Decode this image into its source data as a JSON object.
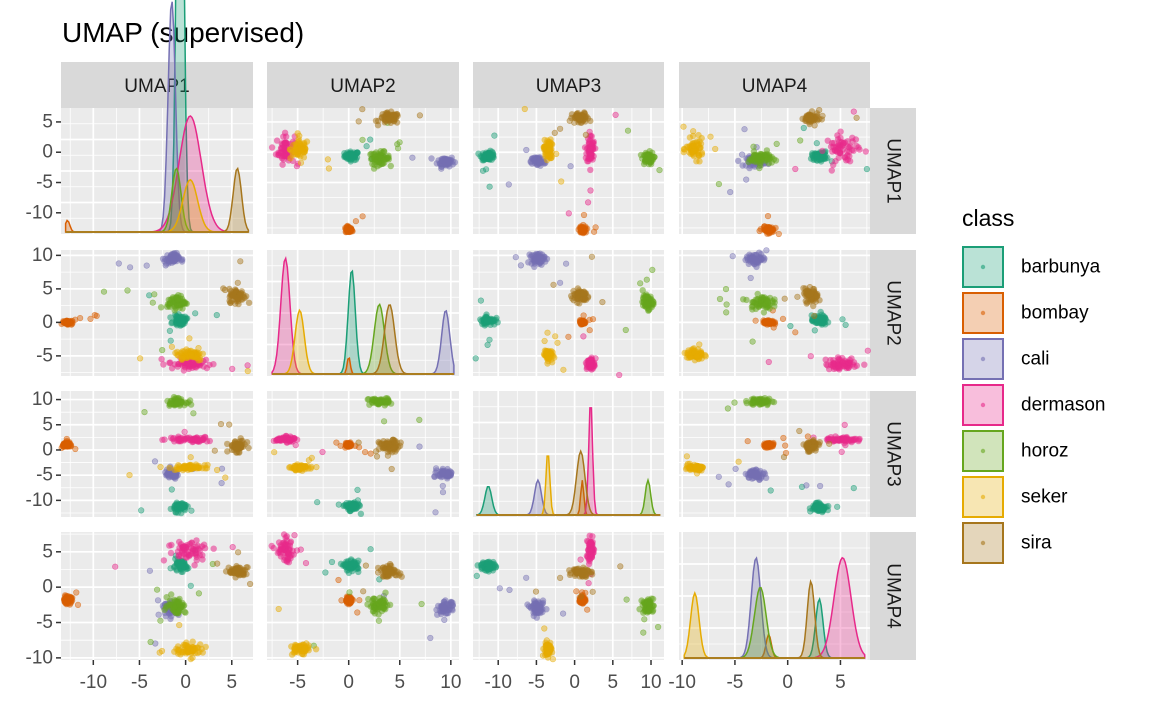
{
  "chart_data": {
    "type": "scatter",
    "subtype": "pairs-matrix (scatter off-diagonal, density on diagonal)",
    "title": "UMAP (supervised)",
    "variables": [
      "UMAP1",
      "UMAP2",
      "UMAP3",
      "UMAP4"
    ],
    "axes": {
      "UMAP1": {
        "range": [
          -13.5,
          7.3
        ],
        "ticks": [
          -10,
          -5,
          0,
          5
        ],
        "tick_labels": [
          "-10",
          "-5",
          "0",
          "5"
        ]
      },
      "UMAP2": {
        "range": [
          -8,
          10.8
        ],
        "ticks": [
          -5,
          0,
          5,
          10
        ],
        "tick_labels": [
          "-5",
          "0",
          "5",
          "10"
        ]
      },
      "UMAP3": {
        "range": [
          -13.3,
          11.7
        ],
        "ticks": [
          -10,
          -5,
          0,
          5,
          10
        ],
        "tick_labels": [
          "-10",
          "-5",
          "0",
          "5",
          "10"
        ]
      },
      "UMAP4": {
        "range": [
          -10.3,
          7.8
        ],
        "ticks": [
          -10,
          -5,
          0,
          5
        ],
        "tick_labels": [
          "-10",
          "-5",
          "0",
          "5"
        ]
      }
    },
    "bottom_tick_labels": [
      [
        "-10",
        "-5",
        "0",
        "5"
      ],
      [
        "-5",
        "0",
        "5",
        "10"
      ],
      [
        "-10",
        "-5",
        "0",
        "5",
        "10-10"
      ],
      [
        "-5",
        "0",
        "5"
      ]
    ],
    "grid": true,
    "legend": {
      "title": "class",
      "position": "right",
      "entries": [
        "barbunya",
        "bombay",
        "cali",
        "dermason",
        "horoz",
        "seker",
        "sira"
      ]
    },
    "classes": [
      {
        "name": "barbunya",
        "color": "#1B9E77",
        "centroid": {
          "UMAP1": -0.6,
          "UMAP2": 0.3,
          "UMAP3": -11.3,
          "UMAP4": 3.0
        },
        "spread": {
          "UMAP1": 0.35,
          "UMAP2": 0.35,
          "UMAP3": 0.45,
          "UMAP4": 0.35
        },
        "density_peaks": {
          "UMAP1": 5.2,
          "UMAP2": 0.9,
          "UMAP3": 0.25,
          "UMAP4": 0.5
        }
      },
      {
        "name": "bombay",
        "color": "#D95F02",
        "centroid": {
          "UMAP1": -12.8,
          "UMAP2": 0.0,
          "UMAP3": 1.0,
          "UMAP4": -1.8
        },
        "spread": {
          "UMAP1": 0.25,
          "UMAP2": 0.15,
          "UMAP3": 0.2,
          "UMAP4": 0.25
        },
        "density_peaks": {
          "UMAP1": 0.1,
          "UMAP2": 0.15,
          "UMAP3": 0.3,
          "UMAP4": 0.2
        }
      },
      {
        "name": "cali",
        "color": "#7570B3",
        "centroid": {
          "UMAP1": -1.5,
          "UMAP2": 9.5,
          "UMAP3": -4.8,
          "UMAP4": -3.0
        },
        "spread": {
          "UMAP1": 0.4,
          "UMAP2": 0.4,
          "UMAP3": 0.45,
          "UMAP4": 0.45
        },
        "density_peaks": {
          "UMAP1": 2.0,
          "UMAP2": 0.55,
          "UMAP3": 0.3,
          "UMAP4": 0.85
        }
      },
      {
        "name": "dermason",
        "color": "#E7298A",
        "centroid": {
          "UMAP1": 0.5,
          "UMAP2": -6.2,
          "UMAP3": 2.1,
          "UMAP4": 5.2
        },
        "spread": {
          "UMAP1": 1.2,
          "UMAP2": 0.45,
          "UMAP3": 0.25,
          "UMAP4": 0.8
        },
        "density_peaks": {
          "UMAP1": 1.0,
          "UMAP2": 1.0,
          "UMAP3": 1.0,
          "UMAP4": 0.85
        }
      },
      {
        "name": "horoz",
        "color": "#66A61E",
        "centroid": {
          "UMAP1": -1.0,
          "UMAP2": 3.0,
          "UMAP3": 9.6,
          "UMAP4": -2.6
        },
        "spread": {
          "UMAP1": 0.5,
          "UMAP2": 0.5,
          "UMAP3": 0.35,
          "UMAP4": 0.55
        },
        "density_peaks": {
          "UMAP1": 0.55,
          "UMAP2": 0.6,
          "UMAP3": 0.3,
          "UMAP4": 0.6
        }
      },
      {
        "name": "seker",
        "color": "#E6AB02",
        "centroid": {
          "UMAP1": 0.5,
          "UMAP2": -4.8,
          "UMAP3": -3.5,
          "UMAP4": -8.8
        },
        "spread": {
          "UMAP1": 0.8,
          "UMAP2": 0.45,
          "UMAP3": 0.25,
          "UMAP4": 0.4
        },
        "density_peaks": {
          "UMAP1": 0.45,
          "UMAP2": 0.55,
          "UMAP3": 0.55,
          "UMAP4": 0.55
        }
      },
      {
        "name": "sira",
        "color": "#A6761D",
        "centroid": {
          "UMAP1": 5.6,
          "UMAP2": 4.0,
          "UMAP3": 0.8,
          "UMAP4": 2.2
        },
        "spread": {
          "UMAP1": 0.45,
          "UMAP2": 0.5,
          "UMAP3": 0.55,
          "UMAP4": 0.35
        },
        "density_peaks": {
          "UMAP1": 0.55,
          "UMAP2": 0.6,
          "UMAP3": 0.55,
          "UMAP4": 0.65
        }
      }
    ]
  }
}
